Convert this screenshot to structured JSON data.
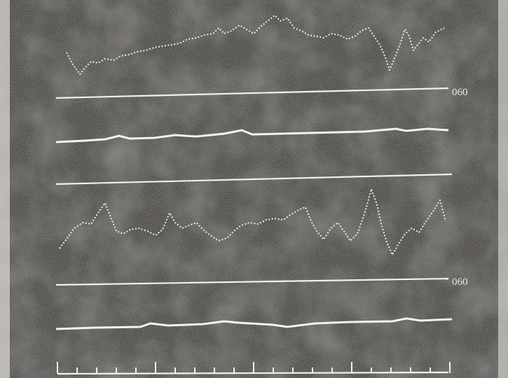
{
  "traces": [
    {
      "label": "060"
    },
    {
      "label": "060"
    }
  ]
}
